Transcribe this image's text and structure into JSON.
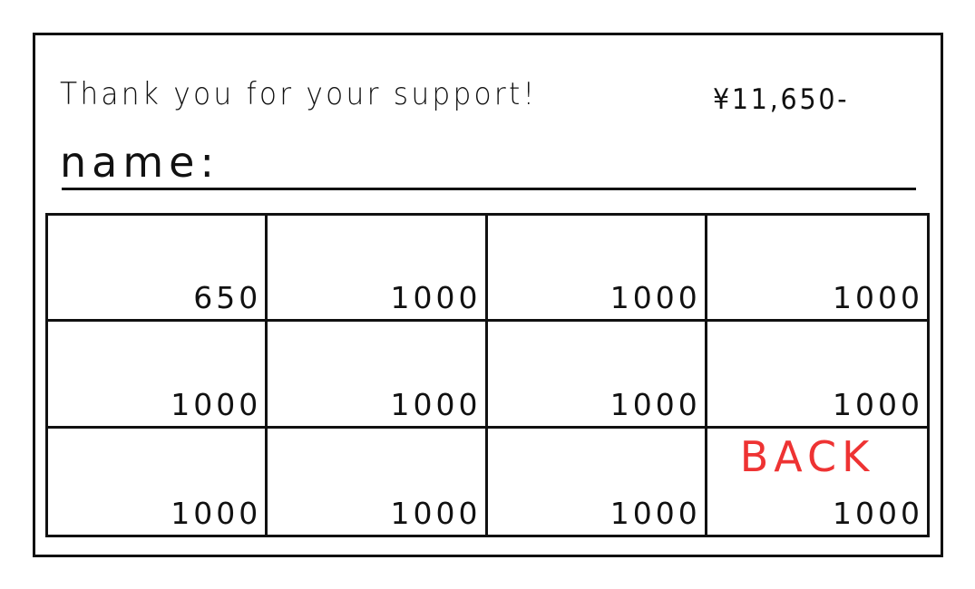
{
  "header": {
    "thanks": "Thank you for your support!",
    "total": "¥11,650-",
    "name_label": "name:"
  },
  "cells": [
    "650",
    "1000",
    "1000",
    "1000",
    "1000",
    "1000",
    "1000",
    "1000",
    "1000",
    "1000",
    "1000",
    "1000"
  ],
  "back_label": "BACK",
  "colors": {
    "back": "#ee3333"
  }
}
